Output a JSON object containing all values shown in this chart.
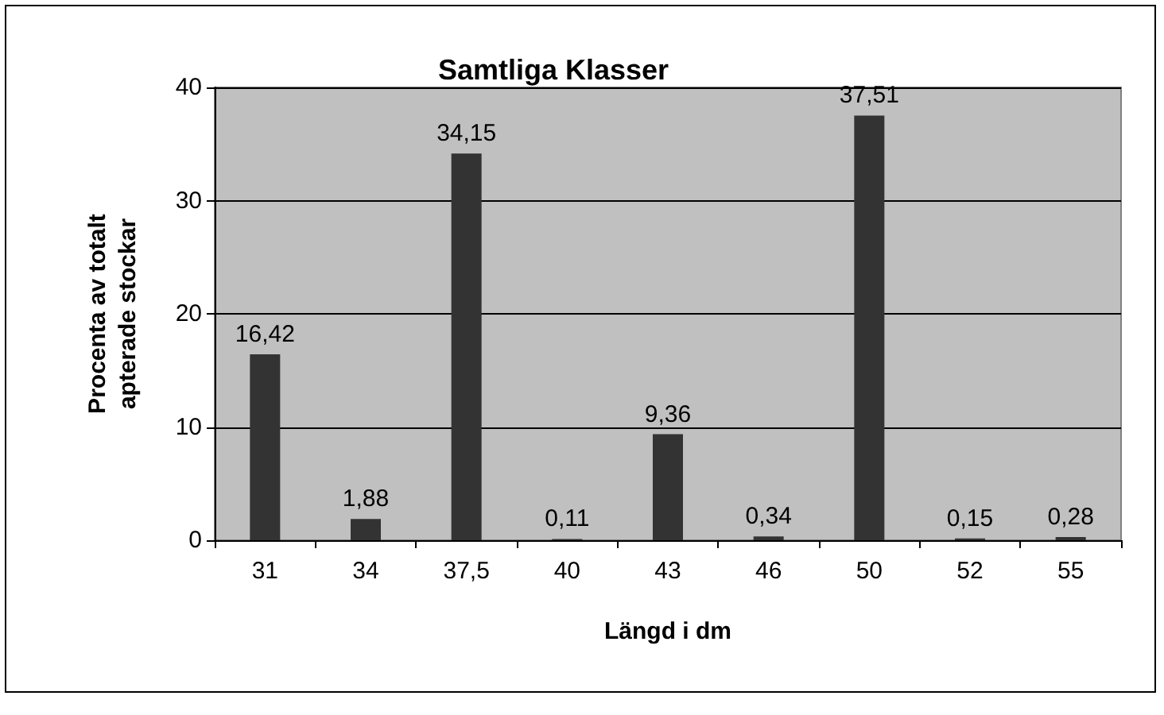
{
  "chart_data": {
    "type": "bar",
    "title": "Samtliga Klasser",
    "xlabel": "Längd i dm",
    "ylabel": "Procenta av totalt\napterade stockar",
    "categories": [
      "31",
      "34",
      "37,5",
      "40",
      "43",
      "46",
      "50",
      "52",
      "55"
    ],
    "values": [
      16.42,
      1.88,
      34.15,
      0.11,
      9.36,
      0.34,
      37.51,
      0.15,
      0.28
    ],
    "value_labels": [
      "16,42",
      "1,88",
      "34,15",
      "0,11",
      "9,36",
      "0,34",
      "37,51",
      "0,15",
      "0,28"
    ],
    "color": "#333333",
    "ylim": [
      0,
      40
    ],
    "yticks": [
      0,
      10,
      20,
      30,
      40
    ],
    "grid": "y"
  }
}
